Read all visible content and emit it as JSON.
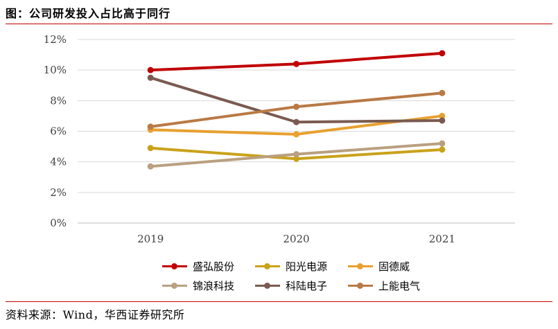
{
  "header": {
    "title": "图：公司研发投入占比高于同行"
  },
  "footer": {
    "source": "资料来源：Wind，华西证券研究所"
  },
  "chart_data": {
    "type": "line",
    "title": "图：公司研发投入占比高于同行",
    "categories": [
      "2019",
      "2020",
      "2021"
    ],
    "ylim": [
      0,
      12
    ],
    "y_ticks": [
      "0%",
      "2%",
      "4%",
      "6%",
      "8%",
      "10%",
      "12%"
    ],
    "grid": true,
    "legend_position": "bottom",
    "series": [
      {
        "name": "盛弘股份",
        "color": "#c00000",
        "values": [
          10.0,
          10.4,
          11.1
        ]
      },
      {
        "name": "阳光电源",
        "color": "#c9a21a",
        "values": [
          4.9,
          4.2,
          4.8
        ]
      },
      {
        "name": "固德威",
        "color": "#e8a030",
        "values": [
          6.1,
          5.8,
          7.0
        ]
      },
      {
        "name": "锦浪科技",
        "color": "#b9a080",
        "values": [
          3.7,
          4.5,
          5.2
        ]
      },
      {
        "name": "科陆电子",
        "color": "#7a5a50",
        "values": [
          9.5,
          6.6,
          6.7
        ]
      },
      {
        "name": "上能电气",
        "color": "#b97a45",
        "values": [
          6.3,
          7.6,
          8.5
        ]
      }
    ]
  }
}
